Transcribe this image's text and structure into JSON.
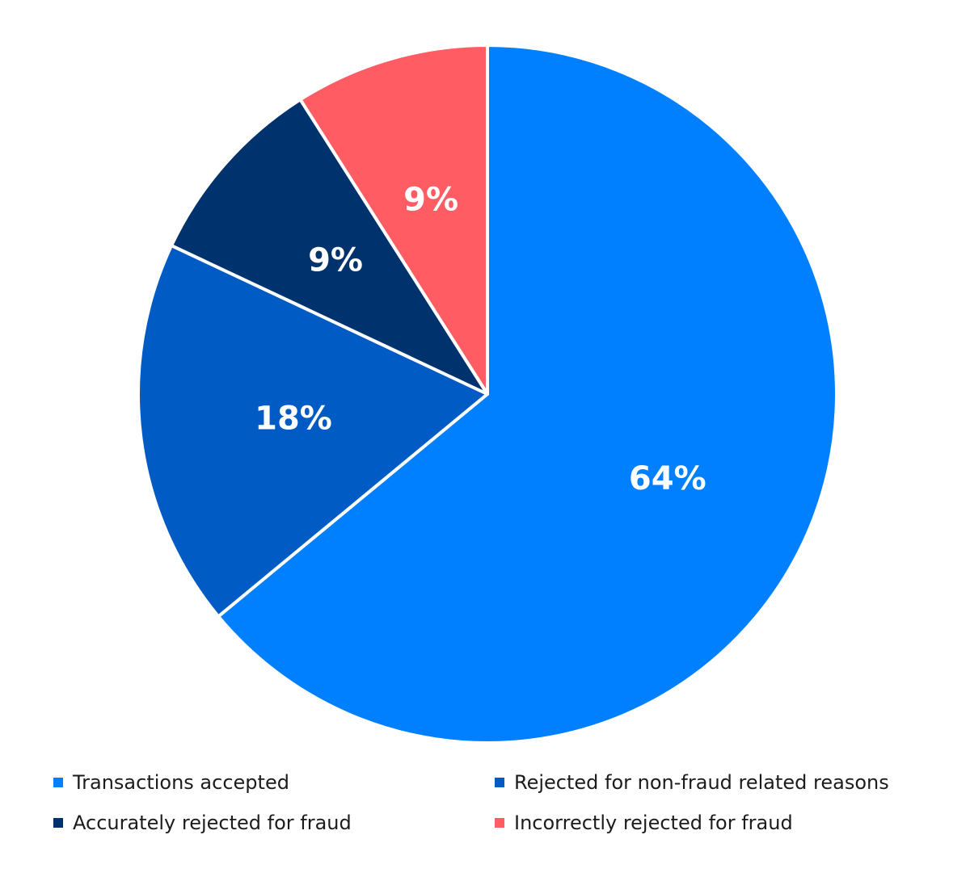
{
  "chart_data": {
    "type": "pie",
    "start": "12 o'clock",
    "direction": "clockwise",
    "legend_position": "bottom",
    "slices": [
      {
        "name": "Transactions accepted",
        "value": 64,
        "label": "64%",
        "color": "#0080FF"
      },
      {
        "name": "Rejected for non-fraud related reasons",
        "value": 18,
        "label": "18%",
        "color": "#005BC4"
      },
      {
        "name": "Accurately rejected for fraud",
        "value": 9,
        "label": "9%",
        "color": "#00326E"
      },
      {
        "name": "Incorrectly rejected for fraud",
        "value": 9,
        "label": "9%",
        "color": "#FF5C64"
      }
    ]
  }
}
